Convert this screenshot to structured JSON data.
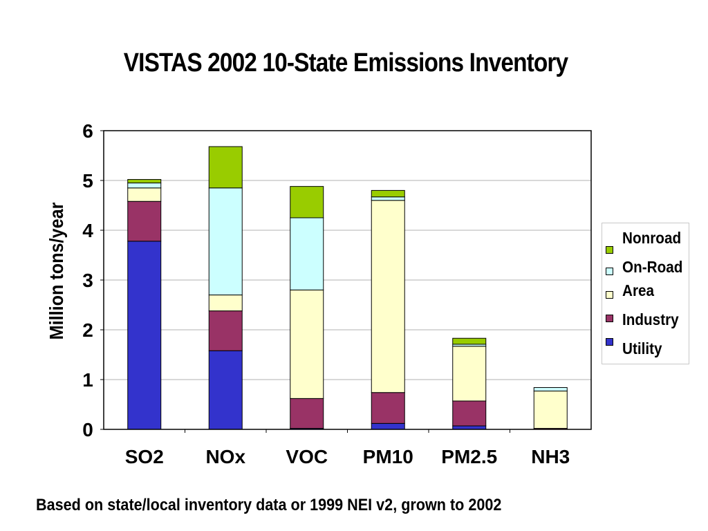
{
  "page": {
    "title": "VISTAS 2002 10-State Emissions Inventory",
    "footnote": "Based on state/local inventory data or 1999 NEI v2, grown to 2002"
  },
  "chart_data": {
    "type": "bar",
    "stacked": true,
    "title": "VISTAS 2002 10-State Emissions Inventory",
    "xlabel": "",
    "ylabel": "Million tons/year",
    "ylim": [
      0,
      6
    ],
    "yticks": [
      "0",
      "1",
      "2",
      "3",
      "4",
      "5",
      "6"
    ],
    "grid": "horizontal",
    "legend_position": "right",
    "categories": [
      "SO2",
      "NOx",
      "VOC",
      "PM10",
      "PM2.5",
      "NH3"
    ],
    "series": [
      {
        "name": "Utility",
        "color": "#3333cc",
        "values": [
          3.78,
          1.58,
          0.02,
          0.12,
          0.07,
          0.0
        ]
      },
      {
        "name": "Industry",
        "color": "#993366",
        "values": [
          0.8,
          0.8,
          0.6,
          0.62,
          0.5,
          0.02
        ]
      },
      {
        "name": "Area",
        "color": "#ffffcc",
        "values": [
          0.27,
          0.32,
          2.18,
          3.86,
          1.1,
          0.75
        ]
      },
      {
        "name": "On-Road",
        "color": "#ccffff",
        "values": [
          0.1,
          2.15,
          1.45,
          0.07,
          0.04,
          0.07
        ]
      },
      {
        "name": "Nonroad",
        "color": "#99cc00",
        "values": [
          0.07,
          0.83,
          0.63,
          0.13,
          0.12,
          0.0
        ]
      }
    ]
  },
  "legend": {
    "items": [
      {
        "label": "Nonroad",
        "color": "#99cc00"
      },
      {
        "label": "On-Road",
        "color": "#ccffff"
      },
      {
        "label": "Area",
        "color": "#ffffcc"
      },
      {
        "label": "Industry",
        "color": "#993366"
      },
      {
        "label": "Utility",
        "color": "#3333cc"
      }
    ]
  }
}
